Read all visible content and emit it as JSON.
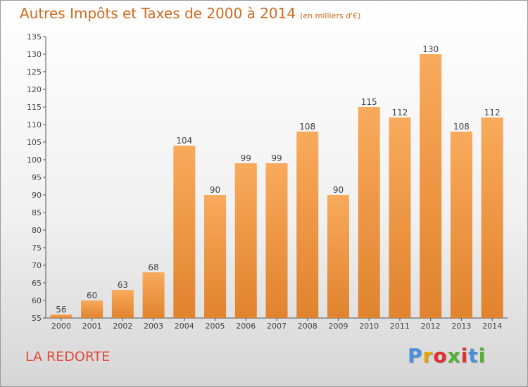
{
  "title": "Autres Impôts et Taxes de 2000 à 2014",
  "unit": "(en milliers d'€)",
  "commune": "LA REDORTE",
  "logo": {
    "text": "Proxiti",
    "colors": [
      "#4a90d9",
      "#e6a000",
      "#e03030",
      "#55b030",
      "#e03030",
      "#4a90d9",
      "#55b030"
    ]
  },
  "colors": {
    "bar_light": "#f9aa5c",
    "bar_dark": "#e0832e",
    "title": "#d2691e",
    "commune": "#e24a3a"
  },
  "chart_data": {
    "type": "bar",
    "title": "Autres Impôts et Taxes de 2000 à 2014",
    "subtitle": "(en milliers d'€)",
    "xlabel": "",
    "ylabel": "",
    "categories": [
      "2000",
      "2001",
      "2002",
      "2003",
      "2004",
      "2005",
      "2006",
      "2007",
      "2008",
      "2009",
      "2010",
      "2011",
      "2012",
      "2013",
      "2014"
    ],
    "values": [
      56,
      60,
      63,
      68,
      104,
      90,
      99,
      99,
      108,
      90,
      115,
      112,
      130,
      108,
      112
    ],
    "ylim": [
      55,
      135
    ],
    "yticks": [
      55,
      60,
      65,
      70,
      75,
      80,
      85,
      90,
      95,
      100,
      105,
      110,
      115,
      120,
      125,
      130,
      135
    ],
    "grid": false,
    "legend": "none"
  }
}
